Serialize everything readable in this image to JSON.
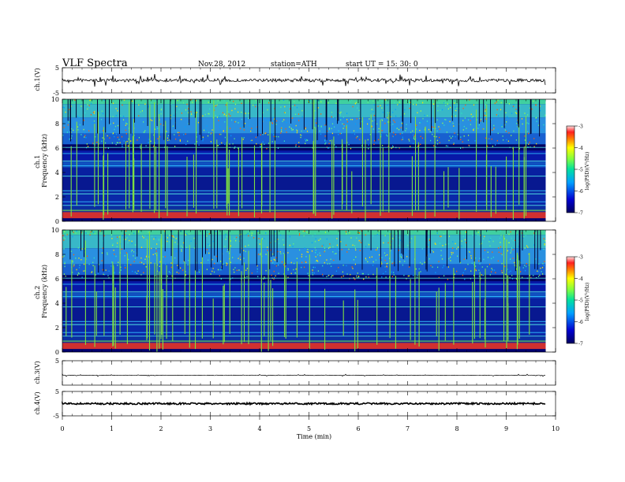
{
  "header": {
    "title": "VLF  Spectra",
    "date": "Nov.28, 2012",
    "station": "station=ATH",
    "start": "start  UT  =   15: 30: 0"
  },
  "colors": {
    "background_low": "#00008b",
    "ridge_red": "#d03030",
    "line_green": "#7fe040",
    "trace": "#000000"
  },
  "chart_data": [
    {
      "type": "line",
      "name": "ch1-waveform",
      "ylabel": "ch.1(V)",
      "ylim": [
        -5,
        5
      ],
      "y_ticks": [
        "5",
        "-5"
      ],
      "xlim": [
        0,
        10
      ]
    },
    {
      "type": "heatmap",
      "name": "ch1-spectrogram",
      "ylabel": "ch.1\nFrequency (kHz)",
      "ylim": [
        0,
        10
      ],
      "y_ticks": [
        "0",
        "2",
        "4",
        "6",
        "8",
        "10"
      ],
      "xlim": [
        0,
        9.8
      ],
      "colorbar": {
        "label": "log(PSD)(V²/Hz)",
        "range": [
          -7,
          -3
        ],
        "ticks": [
          "-3",
          "-4",
          "-5",
          "-6",
          "-7"
        ]
      }
    },
    {
      "type": "heatmap",
      "name": "ch2-spectrogram",
      "ylabel": "ch.2\nFrequency (kHz)",
      "ylim": [
        0,
        10
      ],
      "y_ticks": [
        "0",
        "2",
        "4",
        "6",
        "8",
        "10"
      ],
      "xlim": [
        0,
        9.8
      ],
      "colorbar": {
        "label": "log(PSD)(V²/Hz)",
        "range": [
          -7,
          -3
        ],
        "ticks": [
          "-3",
          "-4",
          "-5",
          "-6",
          "-7"
        ]
      }
    },
    {
      "type": "line",
      "name": "ch3-waveform",
      "ylabel": "ch.3(V)",
      "ylim": [
        -5,
        5
      ],
      "y_ticks": [
        "5"
      ],
      "xlim": [
        0,
        10
      ]
    },
    {
      "type": "line",
      "name": "ch4-waveform",
      "ylabel": "ch.4(V)",
      "ylim": [
        -5,
        5
      ],
      "y_ticks": [
        "5",
        "-5"
      ],
      "xlim": [
        0,
        10
      ]
    }
  ],
  "xaxis": {
    "label": "Time  (min)",
    "ticks": [
      "0",
      "1",
      "2",
      "3",
      "4",
      "5",
      "6",
      "7",
      "8",
      "9",
      "10"
    ]
  }
}
